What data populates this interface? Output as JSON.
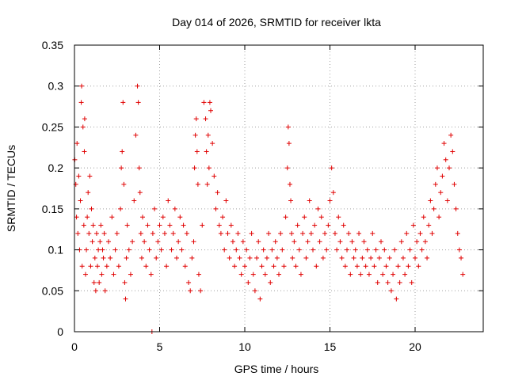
{
  "chart_data": {
    "type": "scatter",
    "title": "Day 014 of 2026, SRMTID for receiver lkta",
    "xlabel": "GPS time / hours",
    "ylabel": "SRMTID / TECUs",
    "xlim": [
      0,
      24
    ],
    "ylim": [
      0,
      0.35
    ],
    "xticks": [
      0,
      5,
      10,
      15,
      20
    ],
    "xtick_labels": [
      "0",
      "5",
      "10",
      "15",
      "20"
    ],
    "yticks": [
      0,
      0.05,
      0.1,
      0.15,
      0.2,
      0.25,
      0.3,
      0.35
    ],
    "ytick_labels": [
      "0",
      "0.05",
      "0.1",
      "0.15",
      "0.2",
      "0.25",
      "0.3",
      "0.35"
    ],
    "grid": true,
    "marker": "+",
    "color": "#e00000",
    "series": [
      {
        "name": "SRMTID",
        "x": [
          0.02,
          0.08,
          0.12,
          0.15,
          0.2,
          0.25,
          0.3,
          0.35,
          0.4,
          0.42,
          0.45,
          0.5,
          0.55,
          0.58,
          0.6,
          0.65,
          0.7,
          0.75,
          0.8,
          0.85,
          0.9,
          0.95,
          1.0,
          1.05,
          1.1,
          1.15,
          1.2,
          1.25,
          1.3,
          1.35,
          1.4,
          1.45,
          1.5,
          1.55,
          1.6,
          1.65,
          1.7,
          1.75,
          1.8,
          1.9,
          2.0,
          2.1,
          2.2,
          2.3,
          2.4,
          2.5,
          2.6,
          2.7,
          2.75,
          2.8,
          2.85,
          2.9,
          2.95,
          3.0,
          3.05,
          3.1,
          3.2,
          3.3,
          3.4,
          3.5,
          3.6,
          3.7,
          3.75,
          3.8,
          3.85,
          3.9,
          3.95,
          4.0,
          4.1,
          4.2,
          4.3,
          4.4,
          4.5,
          4.55,
          4.6,
          4.7,
          4.8,
          4.9,
          5.0,
          5.1,
          5.2,
          5.3,
          5.4,
          5.5,
          5.6,
          5.7,
          5.8,
          5.9,
          6.0,
          6.1,
          6.2,
          6.3,
          6.4,
          6.5,
          6.6,
          6.7,
          6.8,
          6.9,
          7.0,
          7.05,
          7.1,
          7.15,
          7.2,
          7.25,
          7.3,
          7.4,
          7.5,
          7.6,
          7.7,
          7.75,
          7.8,
          7.85,
          7.9,
          7.95,
          8.0,
          8.1,
          8.2,
          8.3,
          8.4,
          8.5,
          8.6,
          8.7,
          8.8,
          8.9,
          9.0,
          9.1,
          9.2,
          9.3,
          9.4,
          9.5,
          9.6,
          9.7,
          9.8,
          9.9,
          10.0,
          10.1,
          10.2,
          10.3,
          10.4,
          10.5,
          10.6,
          10.7,
          10.8,
          10.9,
          11.0,
          11.1,
          11.2,
          11.3,
          11.4,
          11.5,
          11.6,
          11.7,
          11.8,
          11.9,
          12.0,
          12.1,
          12.2,
          12.3,
          12.4,
          12.5,
          12.55,
          12.6,
          12.65,
          12.7,
          12.75,
          12.8,
          12.9,
          13.0,
          13.1,
          13.2,
          13.3,
          13.4,
          13.5,
          13.6,
          13.7,
          13.8,
          13.9,
          14.0,
          14.1,
          14.2,
          14.3,
          14.4,
          14.5,
          14.6,
          14.7,
          14.8,
          14.9,
          15.0,
          15.1,
          15.2,
          15.3,
          15.4,
          15.5,
          15.6,
          15.7,
          15.8,
          15.9,
          16.0,
          16.1,
          16.2,
          16.3,
          16.4,
          16.5,
          16.6,
          16.7,
          16.8,
          16.9,
          17.0,
          17.1,
          17.2,
          17.3,
          17.4,
          17.5,
          17.6,
          17.7,
          17.8,
          17.9,
          18.0,
          18.1,
          18.2,
          18.3,
          18.4,
          18.5,
          18.6,
          18.7,
          18.8,
          18.9,
          19.0,
          19.1,
          19.2,
          19.3,
          19.4,
          19.5,
          19.6,
          19.7,
          19.8,
          19.9,
          20.0,
          20.1,
          20.2,
          20.3,
          20.4,
          20.5,
          20.6,
          20.7,
          20.8,
          20.9,
          21.0,
          21.1,
          21.2,
          21.3,
          21.4,
          21.5,
          21.6,
          21.7,
          21.8,
          21.9,
          22.0,
          22.1,
          22.2,
          22.3,
          22.4,
          22.5,
          22.6,
          22.7,
          22.8
        ],
        "y": [
          0.21,
          0.18,
          0.14,
          0.23,
          0.12,
          0.19,
          0.1,
          0.16,
          0.28,
          0.3,
          0.08,
          0.25,
          0.13,
          0.22,
          0.26,
          0.07,
          0.1,
          0.14,
          0.17,
          0.12,
          0.19,
          0.08,
          0.15,
          0.11,
          0.13,
          0.06,
          0.09,
          0.05,
          0.12,
          0.08,
          0.1,
          0.06,
          0.11,
          0.13,
          0.07,
          0.1,
          0.09,
          0.12,
          0.05,
          0.08,
          0.11,
          0.09,
          0.14,
          0.07,
          0.1,
          0.12,
          0.08,
          0.15,
          0.2,
          0.22,
          0.28,
          0.18,
          0.06,
          0.04,
          0.09,
          0.13,
          0.1,
          0.07,
          0.11,
          0.16,
          0.24,
          0.3,
          0.28,
          0.2,
          0.17,
          0.12,
          0.09,
          0.14,
          0.11,
          0.08,
          0.13,
          0.1,
          0.07,
          0.0,
          0.12,
          0.15,
          0.09,
          0.11,
          0.13,
          0.1,
          0.14,
          0.12,
          0.08,
          0.16,
          0.13,
          0.1,
          0.12,
          0.15,
          0.09,
          0.11,
          0.14,
          0.1,
          0.13,
          0.08,
          0.12,
          0.06,
          0.05,
          0.09,
          0.11,
          0.2,
          0.24,
          0.26,
          0.22,
          0.18,
          0.07,
          0.05,
          0.13,
          0.28,
          0.26,
          0.22,
          0.18,
          0.24,
          0.2,
          0.28,
          0.27,
          0.23,
          0.19,
          0.15,
          0.17,
          0.13,
          0.12,
          0.14,
          0.1,
          0.16,
          0.12,
          0.09,
          0.13,
          0.11,
          0.08,
          0.1,
          0.12,
          0.09,
          0.07,
          0.11,
          0.08,
          0.1,
          0.06,
          0.09,
          0.12,
          0.07,
          0.05,
          0.09,
          0.11,
          0.04,
          0.08,
          0.1,
          0.07,
          0.09,
          0.12,
          0.06,
          0.1,
          0.08,
          0.11,
          0.09,
          0.07,
          0.12,
          0.1,
          0.08,
          0.14,
          0.2,
          0.25,
          0.23,
          0.18,
          0.16,
          0.12,
          0.09,
          0.11,
          0.08,
          0.13,
          0.1,
          0.07,
          0.12,
          0.14,
          0.09,
          0.11,
          0.16,
          0.12,
          0.1,
          0.13,
          0.08,
          0.15,
          0.11,
          0.14,
          0.09,
          0.12,
          0.1,
          0.13,
          0.16,
          0.2,
          0.17,
          0.12,
          0.1,
          0.14,
          0.11,
          0.09,
          0.13,
          0.08,
          0.1,
          0.12,
          0.07,
          0.11,
          0.09,
          0.1,
          0.08,
          0.12,
          0.07,
          0.09,
          0.11,
          0.08,
          0.1,
          0.07,
          0.09,
          0.12,
          0.08,
          0.1,
          0.06,
          0.09,
          0.11,
          0.07,
          0.1,
          0.08,
          0.06,
          0.09,
          0.05,
          0.07,
          0.1,
          0.04,
          0.08,
          0.06,
          0.11,
          0.09,
          0.07,
          0.12,
          0.08,
          0.1,
          0.06,
          0.13,
          0.09,
          0.11,
          0.08,
          0.12,
          0.1,
          0.14,
          0.11,
          0.09,
          0.13,
          0.16,
          0.12,
          0.15,
          0.18,
          0.2,
          0.14,
          0.17,
          0.19,
          0.23,
          0.21,
          0.16,
          0.2,
          0.24,
          0.22,
          0.18,
          0.15,
          0.12,
          0.1,
          0.09,
          0.07
        ]
      }
    ]
  }
}
